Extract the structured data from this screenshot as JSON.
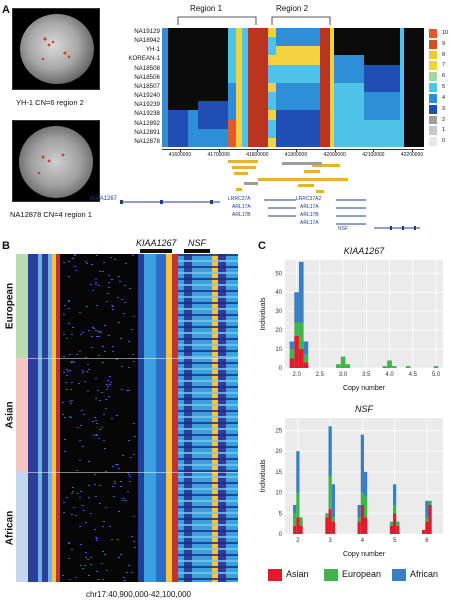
{
  "panel_a": {
    "label": "A",
    "image1_caption": "YH-1 CN=6 region 2",
    "image2_caption": "NA12878 CN=4 region 1",
    "region1_label": "Region 1",
    "region2_label": "Region 2",
    "samples": [
      "NA19129",
      "NA18942",
      "YH-1",
      "KOREAN-1",
      "NA18508",
      "NA18506",
      "NA18507",
      "NA19240",
      "NA19239",
      "NA19238",
      "NA12892",
      "NA12891",
      "NA12878"
    ],
    "genome_ticks": [
      "41600000",
      "41700000",
      "41800000",
      "41900000",
      "42000000",
      "42100000",
      "42200000"
    ],
    "legend_values": [
      "10",
      "9",
      "8",
      "7",
      "6",
      "5",
      "4",
      "3",
      "2",
      "1",
      "0"
    ],
    "legend_colors": [
      "#e05a2b",
      "#c8522a",
      "#f6c437",
      "#f2d23f",
      "#a5d8a0",
      "#4ec3e8",
      "#2e8fd6",
      "#1f4fb2",
      "#9e9e9e",
      "#c8c8c8",
      "#e8e8e8"
    ],
    "genes": [
      "KIAA1267",
      "LRRC37A",
      "ARL17A",
      "ARL17B",
      "LRRC37A2",
      "ARL17A",
      "ARL17B",
      "ARL17A",
      "NSF"
    ]
  },
  "panel_b": {
    "label": "B",
    "gene1": "KIAA1267",
    "gene2": "NSF",
    "groups": [
      "European",
      "Asian",
      "African"
    ],
    "xlabel": "chr17:40,900,000-42,100,000"
  },
  "panel_c": {
    "label": "C",
    "legend": [
      "Asian",
      "European",
      "African"
    ],
    "colors": {
      "Asian": "#e31a2c",
      "European": "#3fb44a",
      "African": "#3a7fc1"
    }
  },
  "chart_data": [
    {
      "type": "bar",
      "title": "KIAA1267",
      "xlabel": "Copy number",
      "ylabel": "Individuals",
      "x_ticks": [
        "2.0",
        "2.5",
        "3.0",
        "3.5",
        "4.0",
        "4.5",
        "5.0"
      ],
      "y_ticks": [
        "0",
        "10",
        "20",
        "30",
        "40",
        "50"
      ],
      "ylim": [
        0,
        57
      ],
      "xlim": [
        1.75,
        5.15
      ],
      "bin_width": 0.1,
      "x": [
        1.9,
        2.0,
        2.1,
        2.2,
        2.9,
        3.0,
        3.1,
        3.9,
        4.0,
        4.1,
        4.4,
        5.0
      ],
      "series": [
        {
          "name": "Asian",
          "values": [
            5,
            17,
            10,
            3,
            0,
            0,
            0,
            0,
            0,
            0,
            0,
            0
          ]
        },
        {
          "name": "European",
          "values": [
            5,
            7,
            14,
            4,
            2,
            6,
            2,
            1,
            4,
            1,
            1,
            1
          ]
        },
        {
          "name": "African",
          "values": [
            4,
            16,
            32,
            7,
            0,
            0,
            0,
            0,
            0,
            0,
            0,
            0
          ]
        }
      ]
    },
    {
      "type": "bar",
      "title": "NSF",
      "xlabel": "Copy number",
      "ylabel": "Individuals",
      "x_ticks": [
        "2",
        "3",
        "4",
        "5",
        "6"
      ],
      "y_ticks": [
        "0",
        "5",
        "10",
        "15",
        "20",
        "25"
      ],
      "ylim": [
        0,
        28
      ],
      "xlim": [
        1.6,
        6.5
      ],
      "bin_width": 0.1,
      "x": [
        1.9,
        2.0,
        2.1,
        2.9,
        3.0,
        3.1,
        3.9,
        4.0,
        4.1,
        4.9,
        5.0,
        5.1,
        5.9,
        6.0,
        6.1
      ],
      "series": [
        {
          "name": "Asian",
          "values": [
            2,
            4,
            2,
            4,
            6,
            3,
            3,
            7,
            4,
            2,
            5,
            2,
            1,
            3,
            7
          ]
        },
        {
          "name": "European",
          "values": [
            3,
            6,
            2,
            1,
            8,
            1,
            1,
            3,
            5,
            1,
            2,
            1,
            0,
            1,
            1
          ]
        },
        {
          "name": "African",
          "values": [
            2,
            10,
            0,
            0,
            12,
            8,
            3,
            14,
            6,
            0,
            5,
            0,
            0,
            4,
            0
          ]
        }
      ]
    }
  ]
}
